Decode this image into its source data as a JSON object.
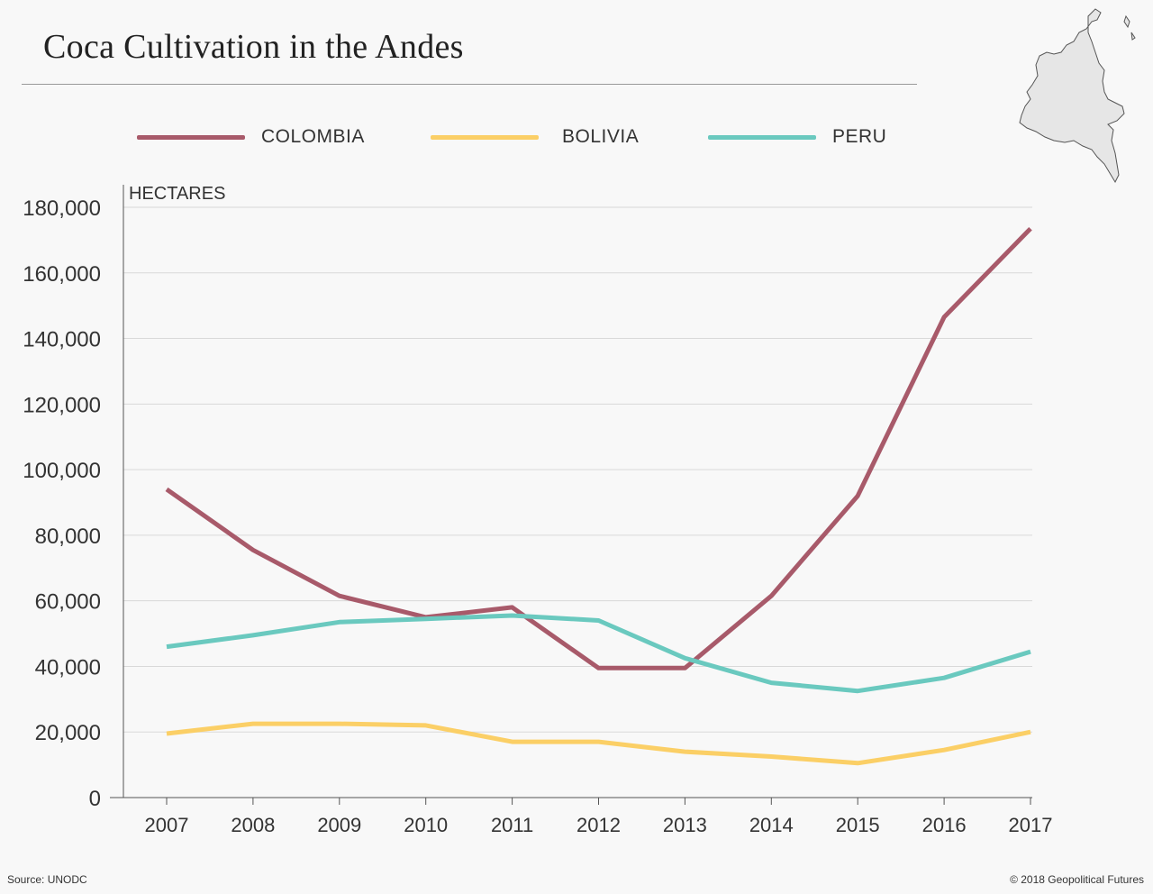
{
  "header": {
    "title": "Coca Cultivation in the Andes"
  },
  "map_icon": {
    "name": "colombia-map-icon",
    "fill": "#e6e6e6",
    "stroke": "#555555"
  },
  "legend": [
    {
      "label": "COLOMBIA",
      "color": "#a85a6a"
    },
    {
      "label": "BOLIVIA",
      "color": "#fbcf66"
    },
    {
      "label": "PERU",
      "color": "#6ac9bf"
    }
  ],
  "chart_data": {
    "type": "line",
    "ylabel": "HECTARES",
    "xlabel": "",
    "x": [
      "2007",
      "2008",
      "2009",
      "2010",
      "2011",
      "2012",
      "2013",
      "2014",
      "2015",
      "2016",
      "2017"
    ],
    "ylim": [
      0,
      180000
    ],
    "yticks": [
      0,
      20000,
      40000,
      60000,
      80000,
      100000,
      120000,
      140000,
      160000,
      180000
    ],
    "ytick_labels": [
      "0",
      "20,000",
      "40,000",
      "60,000",
      "80,000",
      "100,000",
      "120,000",
      "140,000",
      "160,000",
      "180,000"
    ],
    "grid": true,
    "legend_position": "top",
    "series": [
      {
        "name": "COLOMBIA",
        "color": "#a85a6a",
        "values": [
          94000,
          75500,
          61500,
          55000,
          58000,
          39500,
          39500,
          61500,
          92000,
          146500,
          173500
        ]
      },
      {
        "name": "BOLIVIA",
        "color": "#fbcf66",
        "values": [
          19500,
          22500,
          22500,
          22000,
          17000,
          17000,
          14000,
          12500,
          10500,
          14500,
          20000
        ]
      },
      {
        "name": "PERU",
        "color": "#6ac9bf",
        "values": [
          46000,
          49500,
          53500,
          54500,
          55500,
          54000,
          42500,
          35000,
          32500,
          36500,
          44500
        ]
      }
    ]
  },
  "footer": {
    "source": "Source: UNODC",
    "copyright": "© 2018 Geopolitical Futures"
  }
}
